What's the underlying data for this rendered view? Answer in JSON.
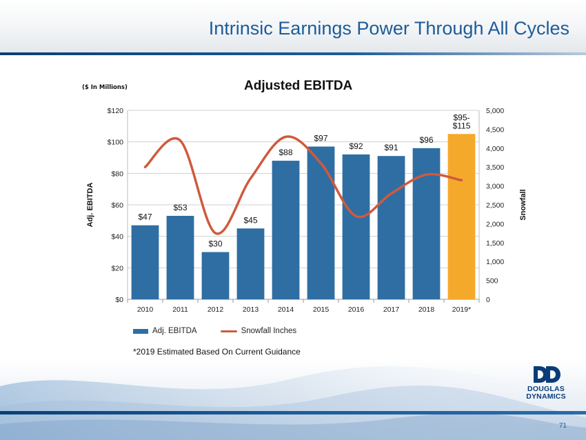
{
  "slide": {
    "title": "Intrinsic Earnings Power Through All Cycles",
    "units_note": "($ In Millions)",
    "footnote": "*2019 Estimated Based On Current Guidance",
    "page_number": "71",
    "logo": {
      "line1": "DOUGLAS",
      "line2": "DYNAMICS",
      "icon": "double-d-logo-icon"
    }
  },
  "colors": {
    "title_blue": "#1d5c99",
    "bar_blue": "#2f6ea3",
    "bar_highlight": "#f5a92b",
    "line_red": "#cf5a3c",
    "grid": "#d0d0d0"
  },
  "chart_data": {
    "type": "bar",
    "title": "Adjusted EBITDA",
    "categories": [
      "2010",
      "2011",
      "2012",
      "2013",
      "2014",
      "2015",
      "2016",
      "2017",
      "2018",
      "2019*"
    ],
    "series": [
      {
        "name": "Adj. EBITDA",
        "type": "bar",
        "axis": "left",
        "values": [
          47,
          53,
          30,
          45,
          88,
          97,
          92,
          91,
          96,
          105
        ],
        "labels": [
          "$47",
          "$53",
          "$30",
          "$45",
          "$88",
          "$97",
          "$92",
          "$91",
          "$96",
          "$95-\n$115"
        ],
        "highlight_index": 9
      },
      {
        "name": "Snowfall Inches",
        "type": "line",
        "smooth": true,
        "axis": "right",
        "values": [
          3500,
          4200,
          1750,
          3200,
          4300,
          3600,
          2200,
          2800,
          3300,
          3150
        ]
      }
    ],
    "ylabel": "Adj. EBITDA",
    "y2label": "Snowfall",
    "ylim": [
      0,
      120
    ],
    "y2lim": [
      0,
      5000
    ],
    "yticks": [
      "$0",
      "$20",
      "$40",
      "$60",
      "$80",
      "$100",
      "$120"
    ],
    "y2ticks": [
      "0",
      "500",
      "1,000",
      "1,500",
      "2,000",
      "2,500",
      "3,000",
      "3,500",
      "4,000",
      "4,500",
      "5,000"
    ],
    "grid": true,
    "legend": "bottom-left"
  }
}
